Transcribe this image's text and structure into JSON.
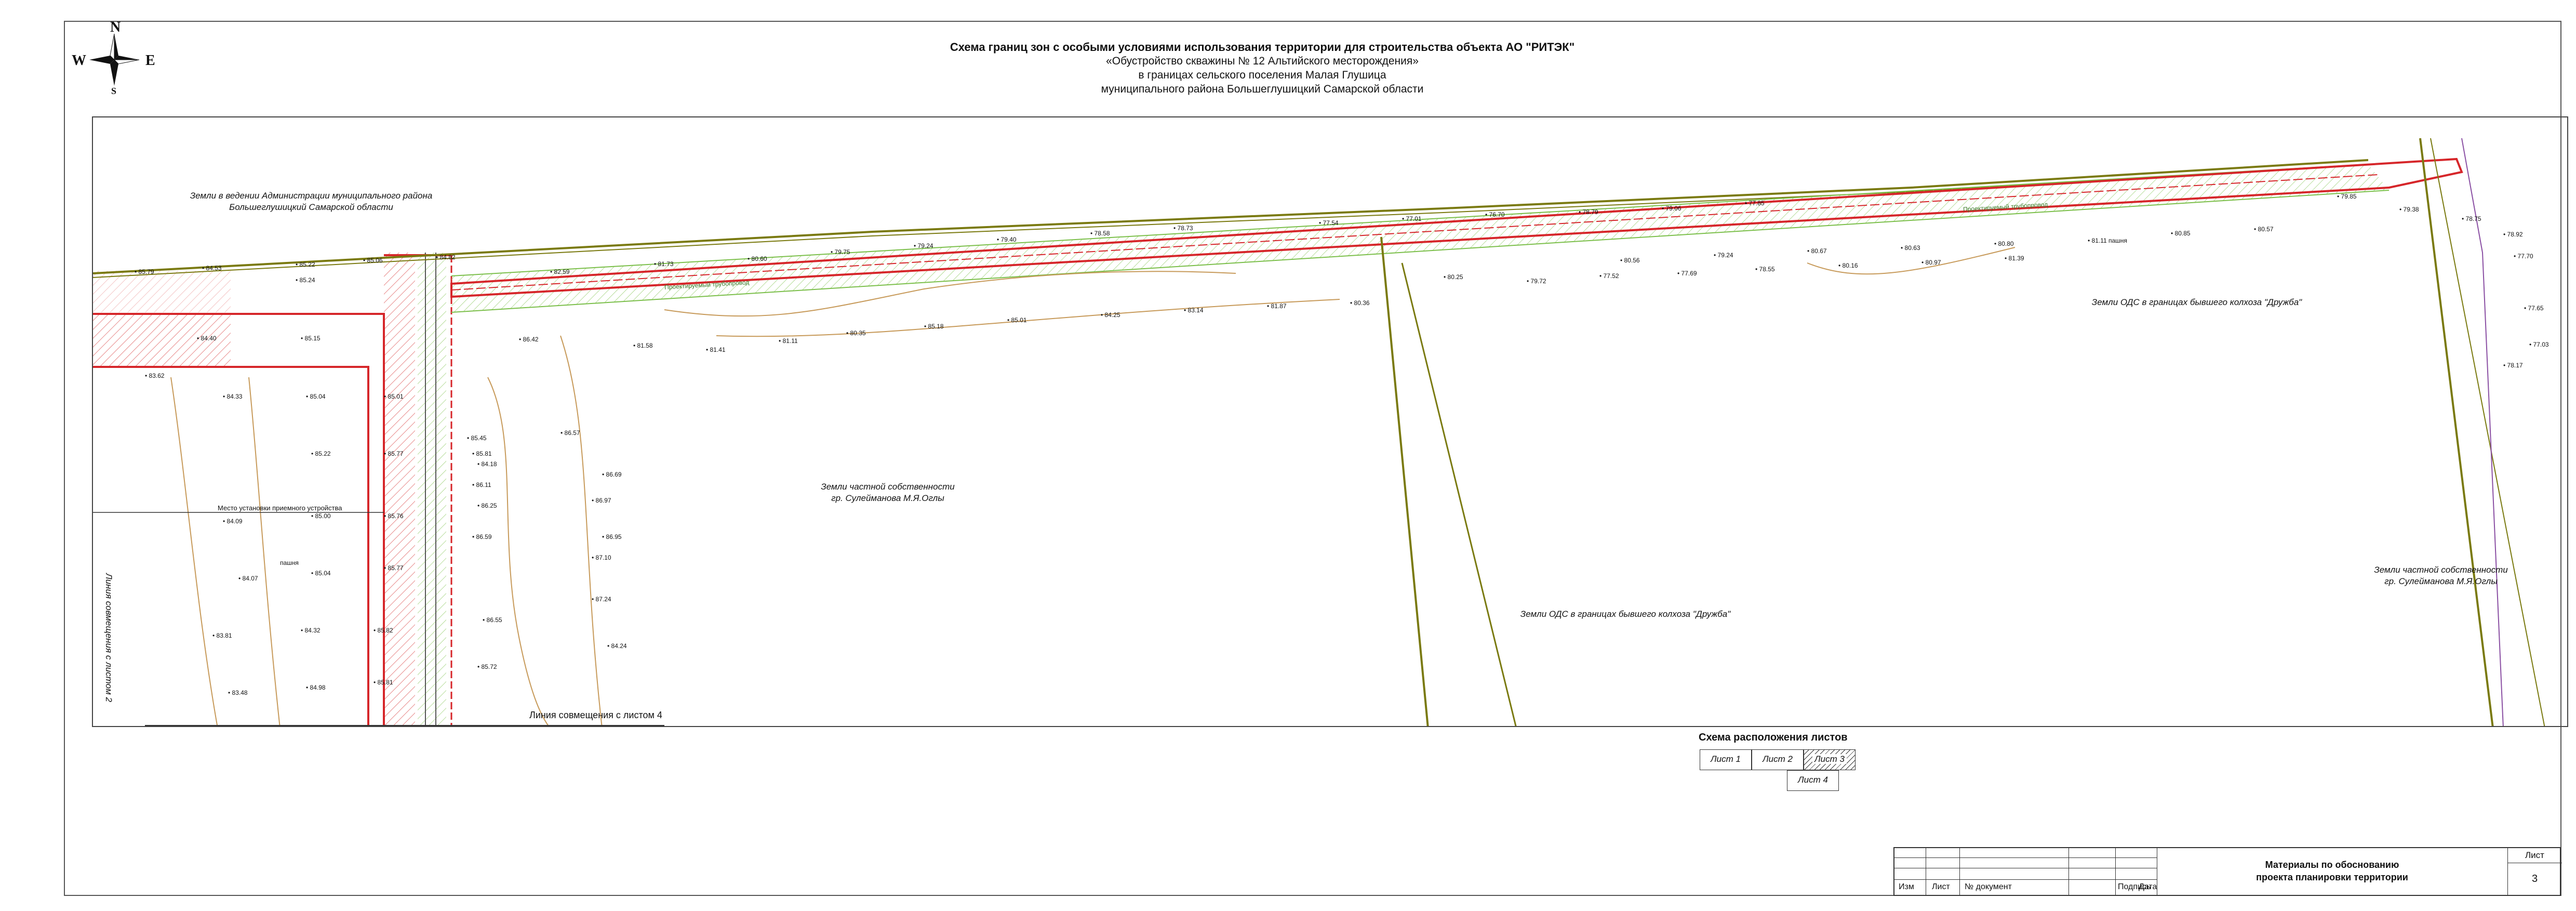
{
  "title": {
    "main": "Схема границ зон с особыми условиями использования территории для строительства объекта АО \"РИТЭК\"",
    "line2": "«Обустройство скважины № 12 Альтийского месторождения»",
    "line3": "в границах сельского поселения Малая Глушица",
    "line4": "муниципального района Большеглушицкий Самарской области"
  },
  "compass": {
    "n": "N",
    "s": "S",
    "w": "W",
    "e": "E"
  },
  "map_labels": {
    "admin_land": "Земли в ведении Администрации муниципального района",
    "admin_land2": "Большеглушицкий Самарской области",
    "private_land": "Земли частной собственности",
    "private_owner": "гр. Сулейманова М.Я.Оглы",
    "ods_center": "Земли ОДС в границах бывшего колхоза \"Дружба\"",
    "ods_right": "Земли ОДС в границах бывшего колхоза \"Дружба\"",
    "private_right": "Земли частной собственности",
    "private_right_owner": "гр. Сулейманова М.Я.Оглы",
    "joint_line_2": "Линия совмещения с листом 2",
    "joint_line_4": "Линия совмещения с листом 4",
    "device_place": "Место установки приемного устройства",
    "arable": "пашня",
    "pipeline": "Проектируемый трубопровод"
  },
  "elevations": [
    "85.79",
    "84.53",
    "85.22",
    "85.06",
    "84.82",
    "85.24",
    "85.15",
    "84.40",
    "83.62",
    "84.33",
    "85.04",
    "85.01",
    "85.22",
    "85.77",
    "84.09",
    "85.00",
    "85.76",
    "84.07",
    "85.04",
    "85.77",
    "83.81",
    "84.32",
    "85.82",
    "83.48",
    "84.98",
    "85.81",
    "84.18",
    "85.81",
    "85.45",
    "86.11",
    "86.25",
    "86.59",
    "86.55",
    "85.72",
    "86.42",
    "86.57",
    "86.69",
    "86.97",
    "86.95",
    "87.10",
    "87.24",
    "84.24",
    "82.59",
    "81.73",
    "80.60",
    "79.75",
    "79.24",
    "79.40",
    "78.58",
    "78.73",
    "77.54",
    "77.01",
    "76.70",
    "78.79",
    "79.06",
    "77.85",
    "77.52",
    "77.69",
    "78.55",
    "80.16",
    "80.97",
    "81.39",
    "81.58",
    "81.41",
    "81.11",
    "80.35",
    "85.18",
    "85.01",
    "84.25",
    "83.14",
    "81.87",
    "80.36",
    "80.25",
    "79.72",
    "80.56",
    "79.24",
    "80.67",
    "80.63",
    "80.80",
    "81.11",
    "80.85",
    "80.57",
    "79.85",
    "79.38",
    "78.75",
    "78.92",
    "77.70",
    "77.65",
    "77.03",
    "78.17"
  ],
  "scheme": {
    "title": "Схема расположения листов",
    "sheets": [
      "Лист 1",
      "Лист 2",
      "Лист 3",
      "Лист 4"
    ]
  },
  "stamp": {
    "col_headers": [
      "Изм",
      "Лист",
      "№ документ",
      "Подпись",
      "Дата"
    ],
    "doc_title_1": "Материалы по обоснованию",
    "doc_title_2": "проекта планировки территории",
    "sheet_label": "Лист",
    "sheet_no": "3"
  },
  "colors": {
    "boundary_red": "#d6262a",
    "hatch_red": "#e88a8a",
    "zone_green": "#7bbf4a",
    "road_olive": "#7a7a10",
    "contour_brown": "#c79a5a",
    "purple_line": "#8a4fa3"
  }
}
